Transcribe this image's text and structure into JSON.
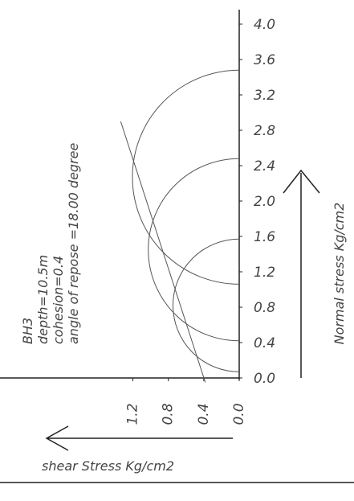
{
  "chart_data": {
    "type": "mohr",
    "annotations": [
      "BH3",
      "depth=10.5m",
      "cohesion=0.4",
      "angle of repose =18.00 degree"
    ],
    "x_label": "shear Stress Kg/cm2",
    "y_label": "Normal stress Kg/cm2",
    "xlim": [
      0,
      2.7
    ],
    "ylim": [
      0,
      4.2
    ],
    "xticks": [
      {
        "value": 0,
        "label": "0.0"
      },
      0.4,
      0.8,
      1.2
    ],
    "yticks": [
      {
        "value": 0,
        "label": "0.0"
      },
      0.4,
      0.8,
      1.2,
      1.6,
      {
        "value": 2,
        "label": "2.0"
      },
      2.4,
      2.8,
      3.2,
      3.6,
      {
        "value": 4,
        "label": "4.0"
      }
    ],
    "circles": [
      {
        "sigma3": 1.06,
        "sigma1": 3.48
      },
      {
        "sigma3": 0.42,
        "sigma1": 2.48
      },
      {
        "sigma3": 0.07,
        "sigma1": 1.57
      }
    ],
    "envelope": {
      "cohesion": 0.4,
      "angle": 18
    },
    "color": "#555555"
  }
}
